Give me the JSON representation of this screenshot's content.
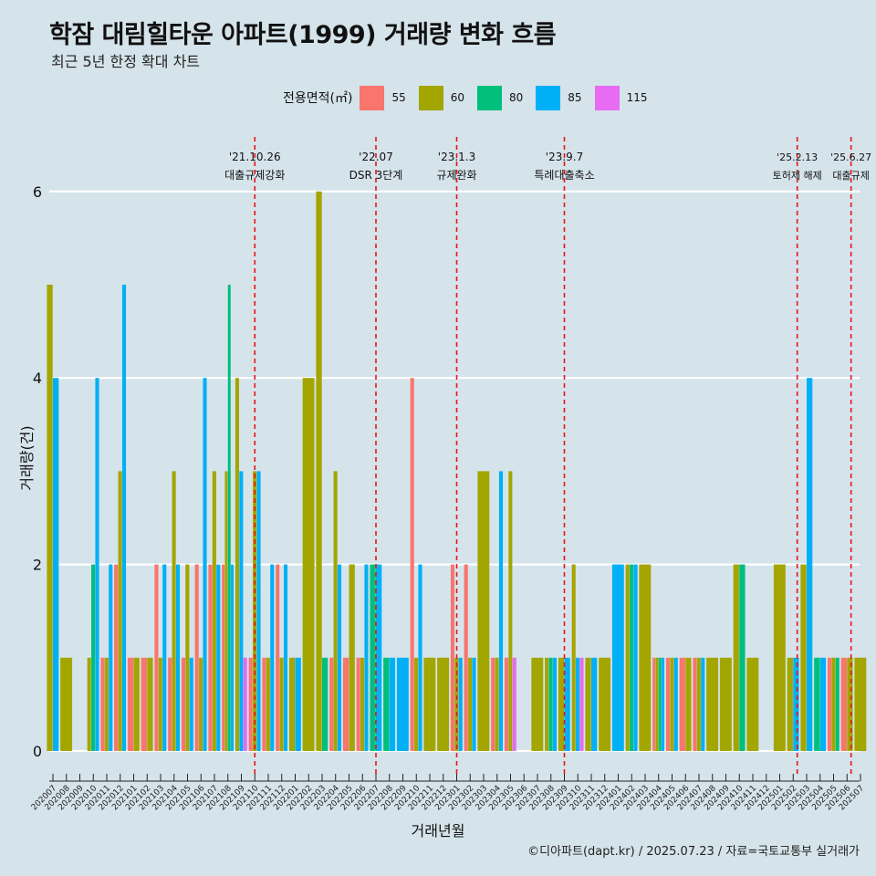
{
  "chart_data": {
    "type": "bar",
    "title": "학잠 대림힐타운 아파트(1999) 거래량 변화 흐름",
    "subtitle": "최근 5년 한정 확대 차트",
    "xlabel": "거래년월",
    "ylabel": "거래량(건)",
    "caption": "©디아파트(dapt.kr) / 2025.07.23 / 자료=국토교통부 실거래가",
    "ylim": [
      0,
      6.5
    ],
    "yticks": [
      0,
      2,
      4,
      6
    ],
    "legend": {
      "title": "전용면적(㎡)",
      "placement": "top",
      "entries": [
        {
          "label": "55",
          "color": "#F8766D"
        },
        {
          "label": "60",
          "color": "#A3A500"
        },
        {
          "label": "80",
          "color": "#00BF7D"
        },
        {
          "label": "85",
          "color": "#00B0F6"
        },
        {
          "label": "115",
          "color": "#E76BF3"
        }
      ]
    },
    "categories": [
      "202007",
      "202008",
      "202009",
      "202010",
      "202011",
      "202012",
      "202101",
      "202102",
      "202103",
      "202104",
      "202105",
      "202106",
      "202107",
      "202108",
      "202109",
      "202110",
      "202111",
      "202112",
      "202201",
      "202202",
      "202203",
      "202204",
      "202205",
      "202206",
      "202207",
      "202208",
      "202209",
      "202210",
      "202211",
      "202212",
      "202301",
      "202302",
      "202303",
      "202304",
      "202305",
      "202306",
      "202307",
      "202308",
      "202309",
      "202310",
      "202311",
      "202312",
      "202401",
      "202402",
      "202403",
      "202404",
      "202405",
      "202406",
      "202407",
      "202408",
      "202409",
      "202410",
      "202411",
      "202412",
      "202501",
      "202502",
      "202503",
      "202504",
      "202505",
      "202506",
      "202507"
    ],
    "series": [
      {
        "name": "55",
        "values": [
          0,
          0,
          0,
          0,
          1,
          2,
          1,
          1,
          2,
          1,
          1,
          2,
          2,
          2,
          0,
          1,
          1,
          2,
          0,
          0,
          0,
          1,
          1,
          1,
          0,
          0,
          0,
          4,
          0,
          0,
          2,
          2,
          0,
          1,
          1,
          0,
          0,
          0,
          0,
          0,
          0,
          0,
          0,
          0,
          0,
          1,
          1,
          1,
          1,
          0,
          0,
          0,
          0,
          0,
          0,
          0,
          0,
          0,
          1,
          1,
          0
        ]
      },
      {
        "name": "60",
        "values": [
          5,
          1,
          0,
          1,
          1,
          3,
          1,
          1,
          1,
          3,
          2,
          1,
          3,
          3,
          4,
          3,
          1,
          1,
          1,
          4,
          6,
          3,
          2,
          1,
          0,
          0,
          0,
          1,
          1,
          1,
          1,
          1,
          3,
          1,
          3,
          0,
          1,
          1,
          1,
          2,
          1,
          1,
          0,
          2,
          2,
          1,
          1,
          1,
          1,
          1,
          1,
          2,
          1,
          0,
          2,
          1,
          2,
          0,
          1,
          1,
          1
        ]
      },
      {
        "name": "80",
        "values": [
          0,
          0,
          0,
          2,
          0,
          0,
          0,
          0,
          0,
          0,
          0,
          0,
          0,
          5,
          0,
          0,
          0,
          0,
          0,
          0,
          1,
          0,
          0,
          0,
          2,
          1,
          0,
          0,
          0,
          0,
          0,
          0,
          0,
          0,
          0,
          0,
          0,
          1,
          0,
          0,
          0,
          0,
          0,
          2,
          0,
          1,
          0,
          0,
          0,
          0,
          0,
          2,
          0,
          0,
          0,
          0,
          0,
          1,
          1,
          0,
          0
        ]
      },
      {
        "name": "85",
        "values": [
          4,
          0,
          0,
          4,
          2,
          5,
          0,
          0,
          2,
          2,
          1,
          4,
          2,
          2,
          3,
          3,
          2,
          2,
          1,
          0,
          0,
          2,
          0,
          2,
          2,
          1,
          1,
          2,
          0,
          0,
          1,
          1,
          0,
          3,
          0,
          0,
          0,
          1,
          1,
          1,
          1,
          0,
          2,
          2,
          0,
          1,
          1,
          0,
          1,
          0,
          0,
          0,
          0,
          0,
          0,
          1,
          4,
          1,
          0,
          0,
          0
        ]
      },
      {
        "name": "115",
        "values": [
          0,
          0,
          0,
          0,
          0,
          0,
          0,
          0,
          0,
          0,
          0,
          0,
          0,
          0,
          1,
          0,
          0,
          0,
          0,
          0,
          0,
          0,
          0,
          0,
          0,
          0,
          0,
          0,
          0,
          0,
          0,
          0,
          0,
          0,
          1,
          0,
          0,
          0,
          0,
          1,
          0,
          0,
          0,
          0,
          0,
          0,
          0,
          0,
          0,
          0,
          0,
          0,
          0,
          0,
          0,
          0,
          0,
          0,
          0,
          0,
          0
        ]
      }
    ],
    "events": [
      {
        "date": "'21.10.26",
        "label": "대출규제강화",
        "index": 15
      },
      {
        "date": "'22.07",
        "label": "DSR 3단계",
        "index": 24
      },
      {
        "date": "'23.1.3",
        "label": "규제완화",
        "index": 30
      },
      {
        "date": "'23.9.7",
        "label": "특례대출축소",
        "index": 38
      },
      {
        "date": "'25.2.13",
        "label": "토허제 해제",
        "index": 55.3
      },
      {
        "date": "'25.6.27",
        "label": "대출규제",
        "index": 59.3
      }
    ]
  }
}
